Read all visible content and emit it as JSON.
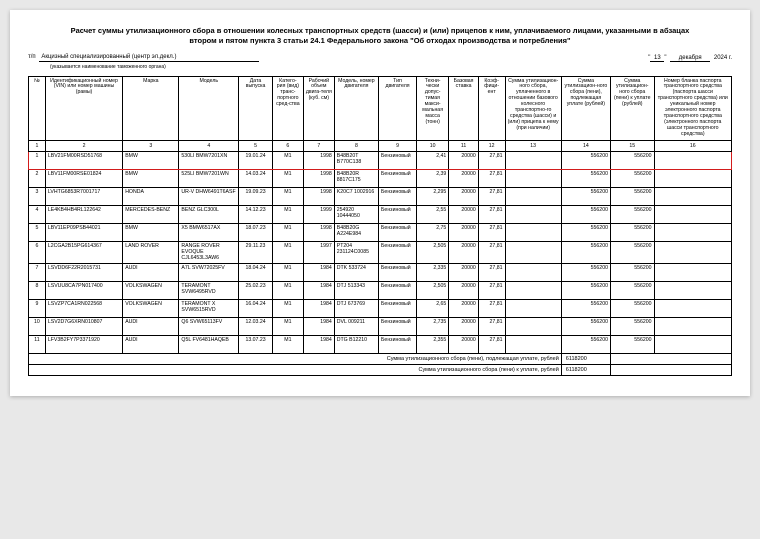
{
  "title": "Расчет суммы утилизационного сбора в отношении колесных транспортных средств (шасси) и (или) прицепов к ним, уплачиваемого лицами, указанными в абзацах втором и пятом пункта 3 статьи 24.1 Федерального закона \"Об отходах производства и потребления\"",
  "meta": {
    "prefix": "т/п",
    "center": "Акцизный специализированный (центр эл.декл.)",
    "note": "(указывается наименование таможенного органа)",
    "date_q1": "\"",
    "date_day": "13",
    "date_q2": "\"",
    "date_month": "декабря",
    "date_year": "2024 г."
  },
  "headers": [
    "№",
    "Идентификационный номер (VIN) или номер машины (рамы)",
    "Марка",
    "Модель",
    "Дата выпуска",
    "Катего-рия (вид) транс-портного сред-ства",
    "Рабочий объем двига-теля (куб. см)",
    "Модель, номер двигателя",
    "Тип двигателя",
    "Техни-чески допус-тимая макси-мальная масса (тонн)",
    "Базовая ставка",
    "Коэф-фици-ент",
    "Сумма утилизацион-ного сбора, уплаченного в отношении базового колесного транспортно-го средства (шасси) и (или) прицепа к нему (при наличии)",
    "Сумма утилизацион-ного сбора (пени), подлежащая уплате (рублей)",
    "Сумма утилизацион-ного сбора (пени) к уплате (рублей)",
    "Номер бланка паспорта транспортного средства (паспорта шасси транспортного средства) или уникальный номер электронного паспорта транспортного средства (электронного паспорта шасси транспортного средства)"
  ],
  "colnums": [
    "1",
    "2",
    "3",
    "4",
    "5",
    "6",
    "7",
    "8",
    "9",
    "10",
    "11",
    "12",
    "13",
    "14",
    "15",
    "16"
  ],
  "rows": [
    {
      "hl": true,
      "n": "1",
      "vin": "LBV21FM00RSD51768",
      "brand": "BMW",
      "model": "530LI BMW7201XN",
      "date": "19.01.24",
      "cat": "M1",
      "disp": "1998",
      "eng": "B48B20T B770C138",
      "fuel": "Бензиновый",
      "mass": "2,41",
      "base": "20000",
      "k": "27,81",
      "paid": "",
      "due": "556200",
      "pay": "556200",
      "blank": ""
    },
    {
      "n": "2",
      "vin": "LBV11FM00RSE01824",
      "brand": "BMW",
      "model": "525LI BMW7201WN",
      "date": "14.03.24",
      "cat": "M1",
      "disp": "1998",
      "eng": "B48B20R 8817C175",
      "fuel": "Бензиновый",
      "mass": "2,39",
      "base": "20000",
      "k": "27,81",
      "paid": "",
      "due": "556200",
      "pay": "556200",
      "blank": ""
    },
    {
      "n": "3",
      "vin": "LVHTG6853R7001717",
      "brand": "HONDA",
      "model": "UR-V DHW6491T6ASF",
      "date": "19.09.23",
      "cat": "M1",
      "disp": "1998",
      "eng": "K20C7 1002916",
      "fuel": "Бензиновый",
      "mass": "2,295",
      "base": "20000",
      "k": "27,81",
      "paid": "",
      "due": "556200",
      "pay": "556200",
      "blank": ""
    },
    {
      "n": "4",
      "vin": "LE4KB4HB4RL122642",
      "brand": "MERCEDES-BENZ",
      "model": "BENZ GLC300L",
      "date": "14.12.23",
      "cat": "M1",
      "disp": "1999",
      "eng": "254920 10444050",
      "fuel": "Бензиновый",
      "mass": "2,55",
      "base": "20000",
      "k": "27,81",
      "paid": "",
      "due": "556200",
      "pay": "556200",
      "blank": ""
    },
    {
      "n": "5",
      "vin": "LBV11EP09PSB44021",
      "brand": "BMW",
      "model": "X5 BMW6517AX",
      "date": "18.07.23",
      "cat": "M1",
      "disp": "1998",
      "eng": "B48B20G A224E984",
      "fuel": "Бензиновый",
      "mass": "2,75",
      "base": "20000",
      "k": "27,81",
      "paid": "",
      "due": "556200",
      "pay": "556200",
      "blank": ""
    },
    {
      "n": "6",
      "vin": "L2CGA2B15PG614367",
      "brand": "LAND ROVER",
      "model": "RANGE ROVER EVOQUE CJL6453L3AW6",
      "date": "29.11.23",
      "cat": "M1",
      "disp": "1997",
      "eng": "PT204 231124C0085",
      "fuel": "Бензиновый",
      "mass": "2,505",
      "base": "20000",
      "k": "27,81",
      "paid": "",
      "due": "556200",
      "pay": "556200",
      "blank": ""
    },
    {
      "n": "7",
      "vin": "LSVDD6F22R2015731",
      "brand": "AUDI",
      "model": "A7L SVW72025FV",
      "date": "18.04.24",
      "cat": "M1",
      "disp": "1984",
      "eng": "DTK 533724",
      "fuel": "Бензиновый",
      "mass": "2,335",
      "base": "20000",
      "k": "27,81",
      "paid": "",
      "due": "556200",
      "pay": "556200",
      "blank": ""
    },
    {
      "n": "8",
      "vin": "LSVUU8CA7PN017400",
      "brand": "VOLKSWAGEN",
      "model": "TERAMONT SVW6495RVD",
      "date": "25.02.23",
      "cat": "M1",
      "disp": "1984",
      "eng": "DTJ 513343",
      "fuel": "Бензиновый",
      "mass": "2,505",
      "base": "20000",
      "k": "27,81",
      "paid": "",
      "due": "556200",
      "pay": "556200",
      "blank": ""
    },
    {
      "n": "9",
      "vin": "LSVZP7CA1RN022568",
      "brand": "VOLKSWAGEN",
      "model": "TERAMONT X SVW6515RVD",
      "date": "16.04.24",
      "cat": "M1",
      "disp": "1984",
      "eng": "DTJ 673769",
      "fuel": "Бензиновый",
      "mass": "2,65",
      "base": "20000",
      "k": "27,81",
      "paid": "",
      "due": "556200",
      "pay": "556200",
      "blank": ""
    },
    {
      "n": "10",
      "vin": "LSV2D7G6XRN010807",
      "brand": "AUDI",
      "model": "Q6 SVW65113FV",
      "date": "12.03.24",
      "cat": "M1",
      "disp": "1984",
      "eng": "DVL 009211",
      "fuel": "Бензиновый",
      "mass": "2,735",
      "base": "20000",
      "k": "27,81",
      "paid": "",
      "due": "556200",
      "pay": "556200",
      "blank": ""
    },
    {
      "n": "11",
      "vin": "LFV3B2FY7P3371920",
      "brand": "AUDI",
      "model": "Q5L FV6481HAQEB",
      "date": "13.07.23",
      "cat": "M1",
      "disp": "1984",
      "eng": "DTG B12210",
      "fuel": "Бензиновый",
      "mass": "2,355",
      "base": "20000",
      "k": "27,81",
      "paid": "",
      "due": "556200",
      "pay": "556200",
      "blank": ""
    }
  ],
  "totals": {
    "label1": "Сумма утилизационного сбора (пени), подлежащая уплате, рублей",
    "val1": "6118200",
    "label2": "Сумма утилизационного сбора (пени) к уплате, рублей",
    "val2": "6118200"
  },
  "highlight_color": "#d21b1b",
  "background": "#ffffff"
}
